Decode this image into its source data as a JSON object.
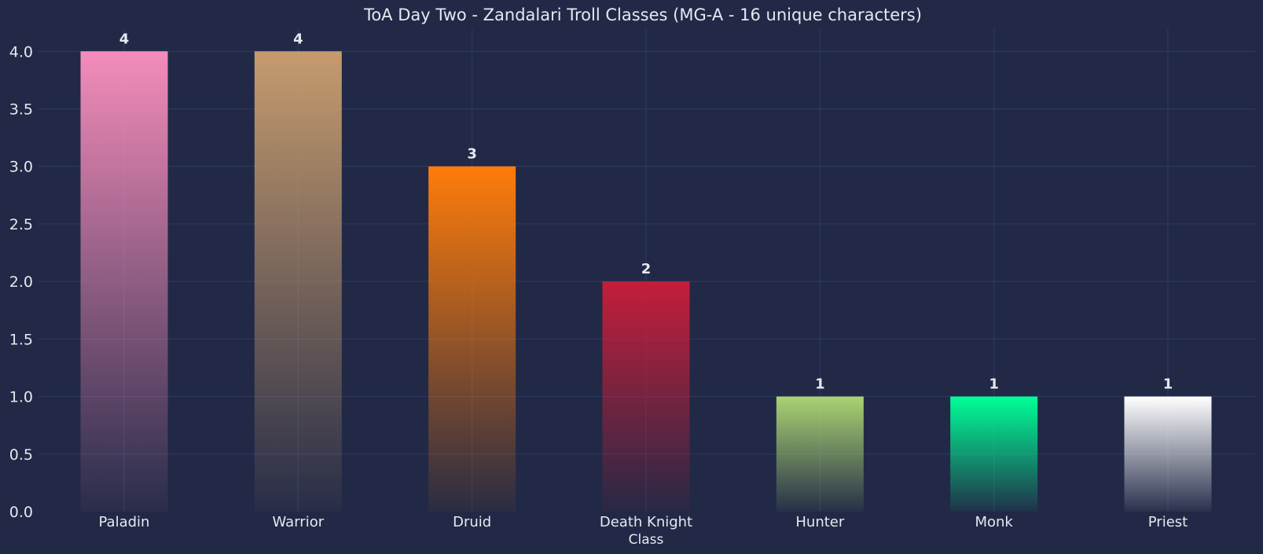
{
  "chart_data": {
    "type": "bar",
    "title": "ToA Day Two - Zandalari Troll Classes (MG-A - 16 unique characters)",
    "xlabel": "Class",
    "ylabel": "",
    "ylim": [
      0,
      4.2
    ],
    "yticks": [
      "0.0",
      "0.5",
      "1.0",
      "1.5",
      "2.0",
      "2.5",
      "3.0",
      "3.5",
      "4.0"
    ],
    "grid": true,
    "categories": [
      "Paladin",
      "Warrior",
      "Druid",
      "Death Knight",
      "Hunter",
      "Monk",
      "Priest"
    ],
    "values": [
      4,
      4,
      3,
      2,
      1,
      1,
      1
    ],
    "data_labels": [
      "4",
      "4",
      "3",
      "2",
      "1",
      "1",
      "1"
    ],
    "colors": [
      "#F48CBA",
      "#C69B6D",
      "#FF7C0A",
      "#C41E3A",
      "#AAD372",
      "#00FF98",
      "#FFFFFF"
    ],
    "background": "#212946"
  }
}
